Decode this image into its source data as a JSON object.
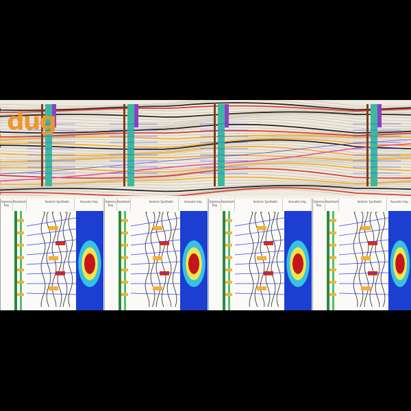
{
  "app": {
    "logo_text": "dug",
    "colors": {
      "logo": "#f0962d",
      "background": "#000000",
      "panel": "#f4f1ea",
      "well_track": "#7b3f12",
      "gamma_track": "#3fb7a0",
      "log_column": "#8e3fc4",
      "horizon_pink": "#e8449a",
      "well_tops": "#2a3cff"
    }
  },
  "well_panels": [
    {
      "col1": "Gamma Ray",
      "col2": "Resistivity",
      "col3": "Seismic Synthetic",
      "col4": "Acoustic Imp."
    },
    {
      "col1": "Gamma Ray",
      "col2": "Resistivity",
      "col3": "Seismic Synthetic",
      "col4": "Acoustic Imp."
    },
    {
      "col1": "Gamma Ray",
      "col2": "Resistivity",
      "col3": "Seismic Synthetic",
      "col4": "Acoustic Imp."
    },
    {
      "col1": "Gamma Ray",
      "col2": "Resistivity",
      "col3": "Seismic Synthetic",
      "col4": "Acoustic Imp."
    }
  ]
}
